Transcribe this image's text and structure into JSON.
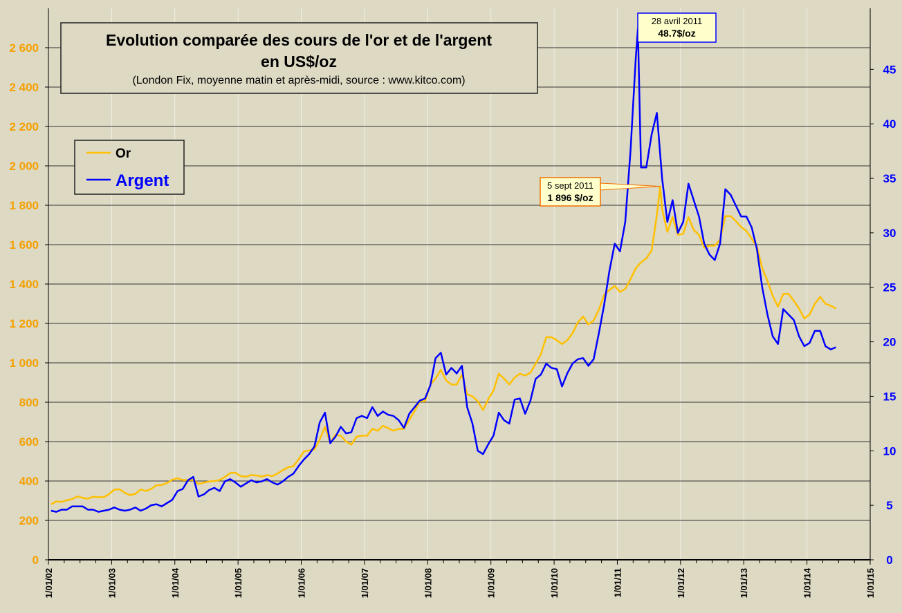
{
  "chart_data": {
    "type": "line",
    "title": "Evolution comparée des cours de l'or et de l'argent",
    "title_line2": "en US$/oz",
    "subtitle": "(London Fix, moyenne matin et après-midi, source : www.kitco.com)",
    "x_tick_labels": [
      "1/01/02",
      "1/01/03",
      "1/01/04",
      "1/01/05",
      "1/01/06",
      "1/01/07",
      "1/01/08",
      "1/01/09",
      "1/01/10",
      "1/01/11",
      "1/01/12",
      "1/01/13",
      "1/01/14",
      "1/01/15"
    ],
    "xlim": [
      "2002-01-01",
      "2015-01-01"
    ],
    "y_left": {
      "ylim": [
        0,
        2800
      ],
      "ticks": [
        "0",
        "200",
        "400",
        "600",
        "800",
        "1 000",
        "1 200",
        "1 400",
        "1 600",
        "1 800",
        "2 000",
        "2 200",
        "2 400",
        "2 600"
      ],
      "color": "#F5A000"
    },
    "y_right": {
      "ylim": [
        0,
        50.6
      ],
      "ticks": [
        "0",
        "5",
        "10",
        "15",
        "20",
        "25",
        "30",
        "35",
        "40",
        "45"
      ],
      "color": "#0000FF"
    },
    "grid": true,
    "legend": {
      "placement": "top-left",
      "entries": [
        {
          "label": "Or",
          "color": "#FFC000"
        },
        {
          "label": "Argent",
          "color": "#0000FF"
        }
      ]
    },
    "series": [
      {
        "name": "Or",
        "axis": "left",
        "color": "#FFC000",
        "monthly": {
          "2002": [
            282,
            296,
            294,
            302,
            308,
            322,
            314,
            310,
            320,
            318,
            318,
            333
          ],
          "2003": [
            356,
            358,
            340,
            328,
            335,
            357,
            350,
            360,
            378,
            380,
            390,
            406
          ],
          "2004": [
            414,
            405,
            405,
            405,
            385,
            392,
            398,
            400,
            405,
            420,
            440,
            442
          ],
          "2005": [
            425,
            422,
            430,
            428,
            422,
            430,
            425,
            438,
            455,
            470,
            475,
            510
          ],
          "2006": [
            550,
            555,
            560,
            610,
            675,
            595,
            635,
            630,
            600,
            585,
            625,
            630
          ],
          "2007": [
            630,
            665,
            655,
            680,
            668,
            655,
            665,
            665,
            710,
            755,
            805,
            805
          ],
          "2008": [
            890,
            920,
            965,
            910,
            890,
            890,
            940,
            840,
            830,
            805,
            760,
            815
          ],
          "2009": [
            860,
            945,
            920,
            890,
            925,
            945,
            935,
            950,
            995,
            1045,
            1130,
            1130
          ],
          "2010": [
            1115,
            1095,
            1115,
            1150,
            1205,
            1235,
            1195,
            1215,
            1270,
            1345,
            1370,
            1390
          ],
          "2011": [
            1360,
            1375,
            1425,
            1480,
            1510,
            1530,
            1570,
            1750,
            1780,
            1665,
            1740,
            1650
          ],
          "2012": [
            1655,
            1740,
            1675,
            1650,
            1585,
            1595,
            1595,
            1625,
            1745,
            1745,
            1720,
            1690
          ],
          "2013": [
            1670,
            1630,
            1590,
            1480,
            1415,
            1340,
            1285,
            1350,
            1350,
            1315,
            1275,
            1225
          ],
          "2014": [
            1245,
            1300,
            1335,
            1300,
            1290,
            1275
          ]
        }
      },
      {
        "name": "Argent",
        "axis": "right",
        "color": "#0000FF",
        "monthly": {
          "2002": [
            4.5,
            4.4,
            4.6,
            4.6,
            4.9,
            4.9,
            4.9,
            4.6,
            4.6,
            4.4,
            4.5,
            4.6
          ],
          "2003": [
            4.8,
            4.6,
            4.5,
            4.6,
            4.8,
            4.5,
            4.7,
            5.0,
            5.1,
            4.9,
            5.2,
            5.5
          ],
          "2004": [
            6.3,
            6.5,
            7.3,
            7.6,
            5.8,
            6.0,
            6.4,
            6.6,
            6.3,
            7.2,
            7.4,
            7.1
          ],
          "2005": [
            6.7,
            7.0,
            7.3,
            7.1,
            7.2,
            7.4,
            7.1,
            6.9,
            7.2,
            7.6,
            7.9,
            8.6
          ],
          "2006": [
            9.2,
            9.7,
            10.4,
            12.6,
            13.5,
            10.7,
            11.3,
            12.2,
            11.6,
            11.7,
            13.0,
            13.2
          ],
          "2007": [
            13.0,
            14.0,
            13.2,
            13.6,
            13.3,
            13.2,
            12.8,
            12.1,
            13.4,
            14.0,
            14.6,
            14.8
          ],
          "2008": [
            16.0,
            18.5,
            19.0,
            17.0,
            17.6,
            17.1,
            17.8,
            14.0,
            12.5,
            10.0,
            9.7,
            10.6
          ],
          "2009": [
            11.4,
            13.5,
            12.8,
            12.5,
            14.7,
            14.8,
            13.4,
            14.6,
            16.6,
            17.0,
            18.0,
            17.6
          ],
          "2010": [
            17.5,
            15.9,
            17.1,
            18.0,
            18.4,
            18.5,
            17.8,
            18.4,
            20.8,
            23.4,
            26.5,
            29.0
          ],
          "2011": [
            28.3,
            31.0,
            37.5,
            46.0,
            36.0,
            36.0,
            39.0,
            41.0,
            35.0,
            31.0,
            33.0,
            30.0
          ],
          "2012": [
            31.0,
            34.5,
            33.0,
            31.5,
            29.0,
            28.0,
            27.5,
            29.0,
            34.0,
            33.5,
            32.5,
            31.5
          ],
          "2013": [
            31.5,
            30.5,
            28.5,
            25.0,
            22.5,
            20.5,
            19.8,
            23.0,
            22.5,
            22.0,
            20.5,
            19.6
          ],
          "2014": [
            19.9,
            21.0,
            21.0,
            19.6,
            19.3,
            19.5
          ]
        }
      }
    ],
    "annotations": [
      {
        "series": "Argent",
        "date": "2011-04-28",
        "value": 48.7,
        "line1": "28 avril 2011",
        "line2": "48.7$/oz",
        "border": "#0000FF"
      },
      {
        "series": "Or",
        "date": "2011-09-05",
        "value": 1896,
        "line1": "5 sept 2011",
        "line2": "1 896 $/oz",
        "border": "#F07000"
      }
    ]
  }
}
